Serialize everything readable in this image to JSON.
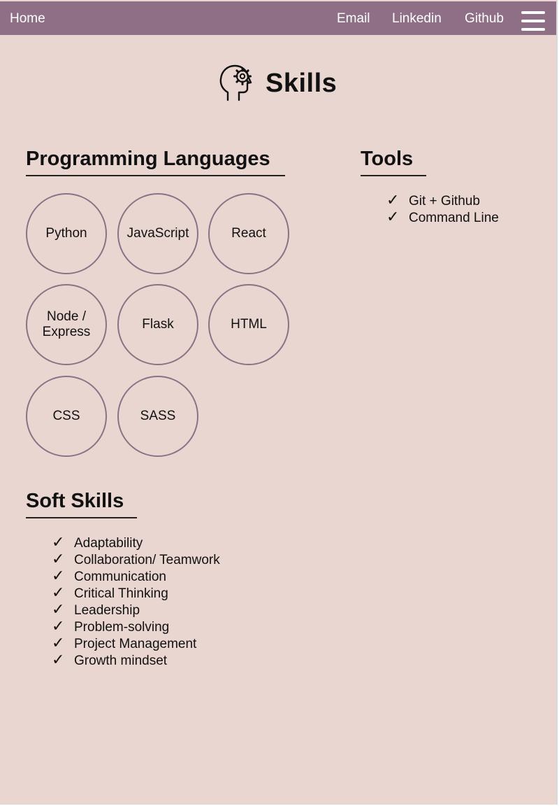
{
  "nav": {
    "home": "Home",
    "links": [
      "Email",
      "Linkedin",
      "Github"
    ],
    "menu_icon": "hamburger-menu-icon"
  },
  "header": {
    "title": "Skills",
    "icon": "head-gear-icon"
  },
  "programming": {
    "title": "Programming Languages",
    "items": [
      "Python",
      "JavaScript",
      "React",
      "Node / Express",
      "Flask",
      "HTML",
      "CSS",
      "SASS"
    ]
  },
  "tools": {
    "title": "Tools",
    "items": [
      "Git + Github",
      "Command Line"
    ]
  },
  "soft": {
    "title": "Soft Skills",
    "items": [
      "Adaptability",
      "Collaboration/ Teamwork",
      "Communication",
      "Critical Thinking",
      "Leadership",
      "Problem-solving",
      "Project Management",
      "Growth mindset"
    ]
  },
  "check_symbol": "✓",
  "colors": {
    "nav_bg": "#8f6f86",
    "page_bg": "#e9d6d0",
    "circle_border": "#8f6f86",
    "text": "#111111"
  }
}
